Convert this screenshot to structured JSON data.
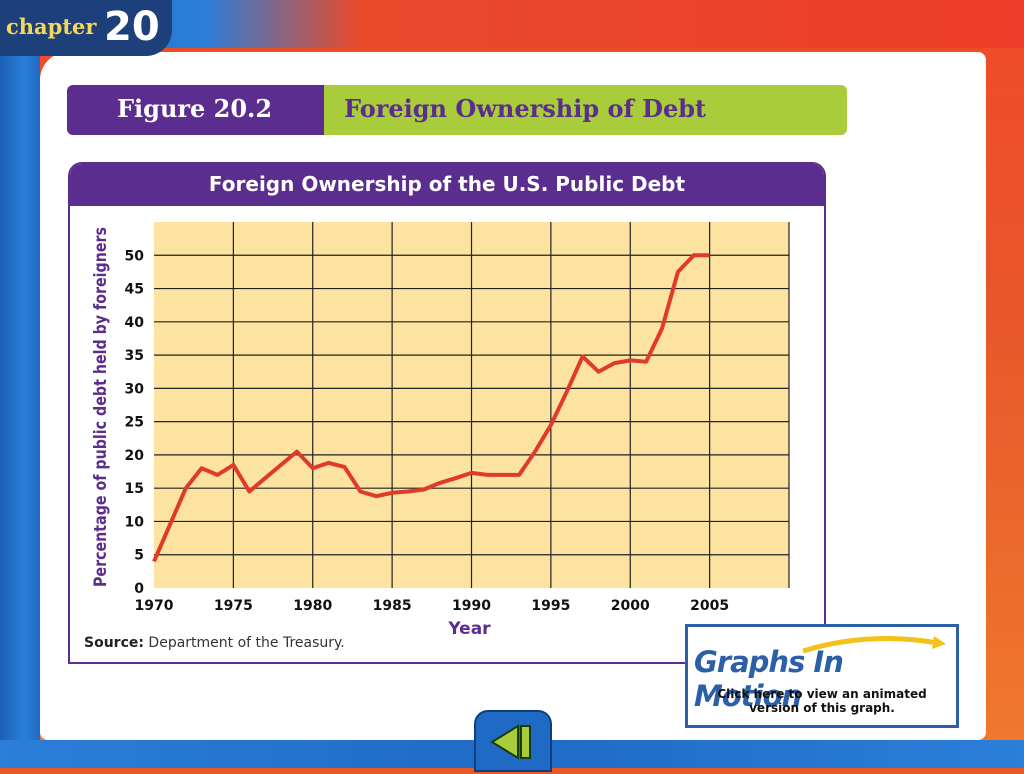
{
  "chapter": {
    "word": "chapter",
    "number": "20"
  },
  "figure": {
    "number": "Figure 20.2",
    "title": "Foreign Ownership of Debt"
  },
  "chart_title": "Foreign Ownership of the U.S. Public Debt",
  "source": {
    "label": "Source:",
    "text": " Department of the Treasury."
  },
  "graphs_in_motion": {
    "title": "Graphs In Motion",
    "line1": "Click here to view an animated",
    "line2": "version of this graph."
  },
  "nav": {
    "back_icon": "back-arrow-icon"
  },
  "colors": {
    "line": "#e03a2c",
    "plot_bg": "#fde3a0",
    "accent": "#5b2d8e",
    "green": "#a8cc3a"
  },
  "chart_data": {
    "type": "line",
    "title": "Foreign Ownership of the U.S. Public Debt",
    "xlabel": "Year",
    "ylabel": "Percentage of public debt held by foreigners",
    "xlim": [
      1970,
      2010
    ],
    "ylim": [
      0,
      55
    ],
    "x_ticks": [
      1970,
      1975,
      1980,
      1985,
      1990,
      1995,
      2000,
      2005
    ],
    "y_ticks": [
      0,
      5,
      10,
      15,
      20,
      25,
      30,
      35,
      40,
      45,
      50
    ],
    "grid": true,
    "series": [
      {
        "x": [
          1970,
          1971,
          1972,
          1973,
          1974,
          1975,
          1976,
          1977,
          1978,
          1979,
          1980,
          1981,
          1982,
          1983,
          1984,
          1985,
          1986,
          1987,
          1988,
          1989,
          1990,
          1991,
          1992,
          1993,
          1994,
          1995,
          1996,
          1997,
          1998,
          1999,
          2000,
          2001,
          2002,
          2003,
          2004,
          2005
        ],
        "y": [
          4,
          9.5,
          15,
          18,
          17,
          18.5,
          14.5,
          16.5,
          18.5,
          20.5,
          18,
          18.8,
          18.2,
          14.5,
          13.8,
          14.3,
          14.5,
          14.8,
          15.8,
          16.5,
          17.3,
          17,
          17,
          17,
          20.5,
          24.5,
          29.5,
          34.8,
          32.5,
          33.8,
          34.2,
          34,
          39,
          47.5,
          50,
          50
        ]
      }
    ]
  }
}
